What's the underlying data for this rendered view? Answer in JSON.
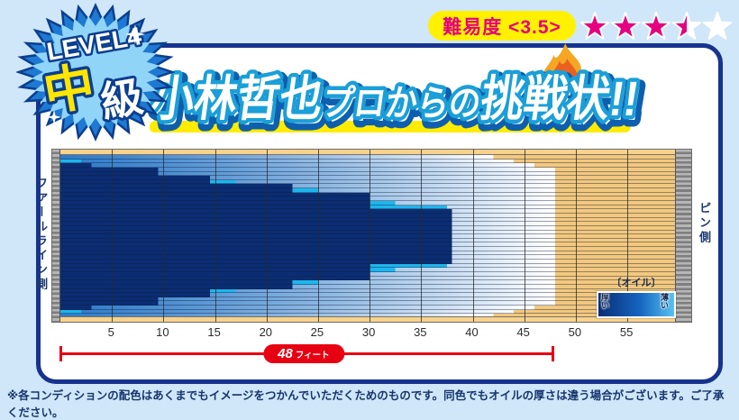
{
  "badge": {
    "level": "LEVEL4",
    "grade_main": "中",
    "grade_sub": "級"
  },
  "difficulty": {
    "label": "難易度 <3.5>",
    "value": 3.5,
    "max": 5
  },
  "title": {
    "part1": "小林哲也",
    "part2": "プロからの",
    "part3": "挑戦状!!"
  },
  "side_labels": {
    "left": "ファールライン側",
    "right": "ピン側"
  },
  "dimension": {
    "value": "48",
    "unit": "フィート"
  },
  "legend": {
    "title": "〔オイル〕",
    "thick": "厚い",
    "thin": "薄い"
  },
  "footnote": "※各コンディションの配色はあくまでもイメージをつかんでいただくためのものです。同色でもオイルの厚さは違う場合がございます。ご了承ください。",
  "colors": {
    "background": "#cfe7f8",
    "panel_border": "#16338e",
    "badge_yellow": "#ffe600",
    "magenta": "#e4007f",
    "pill_yellow": "#fff100",
    "red": "#e60012",
    "heavy_oil": "#0a2d73",
    "accent_cyan": "#1db6ec",
    "base_oil": "#2e7cca",
    "wood": "#f2c87e",
    "title_outline": "#1a9fd8",
    "title_shadow": "#0e5fae"
  },
  "chart_data": {
    "type": "heatmap",
    "subject": "bowling-lane-oil-pattern",
    "title": "小林哲也プロからの挑戦状!!",
    "x_ticks": [
      5,
      10,
      15,
      20,
      25,
      30,
      35,
      40,
      45,
      50,
      55
    ],
    "x_unit": "フィート",
    "lane_length_ft": 60,
    "oil_pattern_length_ft": 48,
    "boards": 39,
    "legend": {
      "title": "〔オイル〕",
      "left_label": "厚い",
      "right_label": "薄い"
    },
    "rows": [
      {
        "board": 1,
        "heavy_to": 0,
        "accent": null,
        "oil_to": 42
      },
      {
        "board": 2,
        "heavy_to": 0,
        "accent": [
          0,
          2
        ],
        "oil_to": 44
      },
      {
        "board": 3,
        "heavy_to": 3,
        "accent": null,
        "oil_to": 46
      },
      {
        "board": 4,
        "heavy_to": 9.5,
        "accent": null,
        "oil_to": 48
      },
      {
        "board": 5,
        "heavy_to": 9.5,
        "accent": null,
        "oil_to": 48
      },
      {
        "board": 6,
        "heavy_to": 14.5,
        "accent": null,
        "oil_to": 48
      },
      {
        "board": 7,
        "heavy_to": 14.5,
        "accent": [
          14.5,
          17
        ],
        "oil_to": 48
      },
      {
        "board": 8,
        "heavy_to": 22.5,
        "accent": null,
        "oil_to": 48
      },
      {
        "board": 9,
        "heavy_to": 22.5,
        "accent": [
          22.5,
          25
        ],
        "oil_to": 48
      },
      {
        "board": 10,
        "heavy_to": 30,
        "accent": null,
        "oil_to": 48
      },
      {
        "board": 11,
        "heavy_to": 30,
        "accent": null,
        "oil_to": 48
      },
      {
        "board": 12,
        "heavy_to": 30,
        "accent": [
          30,
          32.5
        ],
        "oil_to": 48
      },
      {
        "board": 13,
        "heavy_to": 30,
        "accent": [
          30,
          37.5
        ],
        "oil_to": 48
      },
      {
        "board": 14,
        "heavy_to": 38,
        "accent": null,
        "oil_to": 48
      },
      {
        "board": 15,
        "heavy_to": 38,
        "accent": null,
        "oil_to": 48
      },
      {
        "board": 16,
        "heavy_to": 38,
        "accent": null,
        "oil_to": 48
      },
      {
        "board": 17,
        "heavy_to": 38,
        "accent": null,
        "oil_to": 48
      },
      {
        "board": 18,
        "heavy_to": 38,
        "accent": null,
        "oil_to": 48
      },
      {
        "board": 19,
        "heavy_to": 38,
        "accent": null,
        "oil_to": 48
      },
      {
        "board": 20,
        "heavy_to": 38,
        "accent": null,
        "oil_to": 48
      },
      {
        "board": 21,
        "heavy_to": 38,
        "accent": null,
        "oil_to": 48
      },
      {
        "board": 22,
        "heavy_to": 38,
        "accent": null,
        "oil_to": 48
      },
      {
        "board": 23,
        "heavy_to": 38,
        "accent": null,
        "oil_to": 48
      },
      {
        "board": 24,
        "heavy_to": 38,
        "accent": null,
        "oil_to": 48
      },
      {
        "board": 25,
        "heavy_to": 38,
        "accent": null,
        "oil_to": 48
      },
      {
        "board": 26,
        "heavy_to": 38,
        "accent": null,
        "oil_to": 48
      },
      {
        "board": 27,
        "heavy_to": 30,
        "accent": [
          30,
          37.5
        ],
        "oil_to": 48
      },
      {
        "board": 28,
        "heavy_to": 30,
        "accent": [
          30,
          32.5
        ],
        "oil_to": 48
      },
      {
        "board": 29,
        "heavy_to": 30,
        "accent": null,
        "oil_to": 48
      },
      {
        "board": 30,
        "heavy_to": 30,
        "accent": null,
        "oil_to": 48
      },
      {
        "board": 31,
        "heavy_to": 22.5,
        "accent": [
          22.5,
          25
        ],
        "oil_to": 48
      },
      {
        "board": 32,
        "heavy_to": 22.5,
        "accent": null,
        "oil_to": 48
      },
      {
        "board": 33,
        "heavy_to": 14.5,
        "accent": [
          14.5,
          17
        ],
        "oil_to": 48
      },
      {
        "board": 34,
        "heavy_to": 14.5,
        "accent": null,
        "oil_to": 48
      },
      {
        "board": 35,
        "heavy_to": 9.5,
        "accent": null,
        "oil_to": 48
      },
      {
        "board": 36,
        "heavy_to": 9.5,
        "accent": null,
        "oil_to": 48
      },
      {
        "board": 37,
        "heavy_to": 3,
        "accent": null,
        "oil_to": 46
      },
      {
        "board": 38,
        "heavy_to": 0,
        "accent": [
          0,
          2
        ],
        "oil_to": 44
      },
      {
        "board": 39,
        "heavy_to": 0,
        "accent": null,
        "oil_to": 42
      }
    ]
  }
}
